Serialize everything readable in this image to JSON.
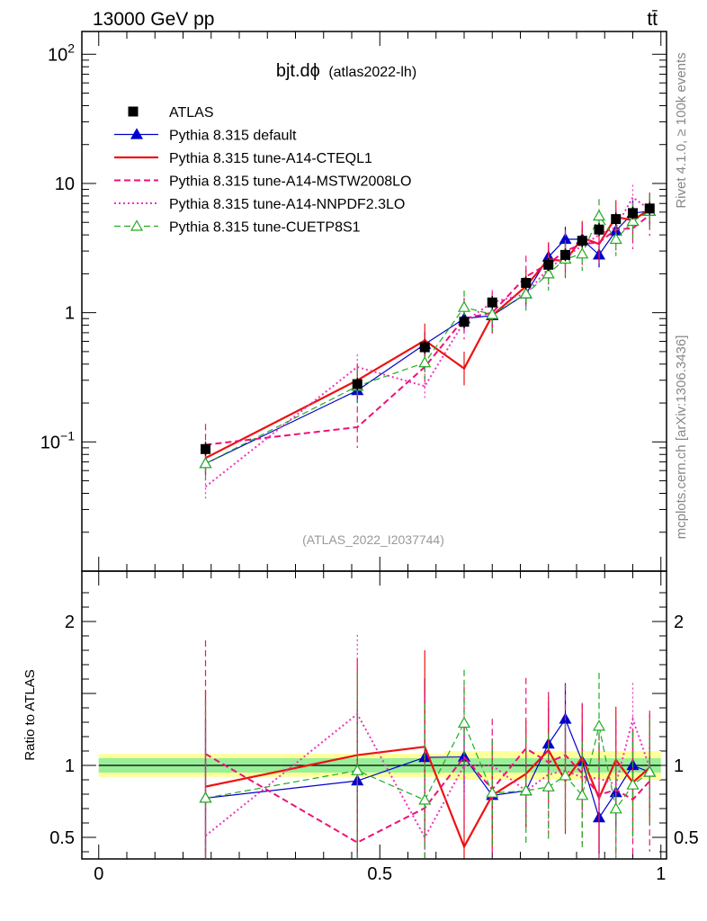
{
  "header": {
    "left": "13000 GeV pp",
    "right": "tt̄"
  },
  "side_labels": {
    "rivet": "Rivet 4.1.0, ≥ 100k events",
    "mcplots": "mcplots.cern.ch [arXiv:1306.3436]"
  },
  "chart_data": {
    "type": "line",
    "title": "bjt.dϕ",
    "subtitle": "(atlas2022-lh)",
    "watermark": "(ATLAS_2022_I2037744)",
    "xlabel": "",
    "ylabel_main": "",
    "ylabel_ratio": "Ratio to ATLAS",
    "xlim": [
      -0.03,
      1.01
    ],
    "ylim_main": [
      0.01,
      150
    ],
    "yscale_main": "log",
    "ylim_ratio": [
      0.35,
      2.35
    ],
    "x_ticks": [
      0,
      0.5,
      1
    ],
    "x_tick_labels": [
      "0",
      "0.5",
      "1"
    ],
    "main_y_ticks": [
      {
        "value": 0.1,
        "base": "10",
        "exp": "−1"
      },
      {
        "value": 1,
        "label": "1"
      },
      {
        "value": 10,
        "label": "10"
      },
      {
        "value": 100,
        "base": "10",
        "exp": "2"
      }
    ],
    "ratio_y_ticks": [
      {
        "value": 0.5,
        "label": "0.5"
      },
      {
        "value": 1,
        "label": "1"
      },
      {
        "value": 2,
        "label": "2"
      }
    ],
    "x": [
      0.19,
      0.46,
      0.58,
      0.65,
      0.7,
      0.76,
      0.8,
      0.83,
      0.86,
      0.89,
      0.92,
      0.95,
      0.98
    ],
    "data": {
      "name": "ATLAS",
      "values": [
        0.088,
        0.28,
        0.54,
        0.85,
        1.2,
        1.7,
        2.35,
        2.8,
        3.6,
        4.4,
        5.3,
        5.9,
        6.4
      ],
      "band_inner": [
        0.05,
        0.05,
        0.05,
        0.05,
        0.05,
        0.05,
        0.05,
        0.05,
        0.05,
        0.05,
        0.05,
        0.05,
        0.05
      ],
      "band_outer": [
        0.08,
        0.08,
        0.08,
        0.1,
        0.1,
        0.1,
        0.1,
        0.1,
        0.1,
        0.1,
        0.1,
        0.1,
        0.1
      ]
    },
    "series": [
      {
        "name": "Pythia 8.315 default",
        "color": "#0000cc",
        "style": "solid",
        "marker": "triangle",
        "width": 1.2,
        "values": [
          0.068,
          0.25,
          0.57,
          0.9,
          0.95,
          1.4,
          2.7,
          3.7,
          3.7,
          2.8,
          4.3,
          5.9,
          6.1
        ]
      },
      {
        "name": "Pythia 8.315 tune-A14-CTEQL1",
        "color": "#ee1111",
        "style": "solid",
        "marker": "none",
        "width": 2.2,
        "values": [
          0.075,
          0.3,
          0.61,
          0.37,
          0.95,
          1.6,
          2.6,
          2.5,
          3.8,
          3.4,
          5.5,
          5.2,
          6.3
        ]
      },
      {
        "name": "Pythia 8.315 tune-A14-MSTW2008LO",
        "color": "#ee1177",
        "style": "dash",
        "marker": "none",
        "width": 2.0,
        "values": [
          0.095,
          0.13,
          0.38,
          0.9,
          1.0,
          1.9,
          2.4,
          3.0,
          3.4,
          3.5,
          4.4,
          4.5,
          5.7
        ]
      },
      {
        "name": "Pythia 8.315 tune-A14-NNPDF2.3LO",
        "color": "#ee33bb",
        "style": "dot",
        "marker": "none",
        "width": 2.0,
        "values": [
          0.045,
          0.38,
          0.27,
          0.85,
          1.2,
          1.4,
          2.2,
          2.7,
          3.3,
          4.0,
          4.6,
          7.8,
          6.3
        ]
      },
      {
        "name": "Pythia 8.315 tune-CUETP8S1",
        "color": "#22aa22",
        "style": "dash",
        "marker": "triangle-open",
        "width": 1.2,
        "values": [
          0.068,
          0.27,
          0.41,
          1.1,
          0.97,
          1.4,
          2.0,
          2.6,
          2.85,
          5.6,
          3.7,
          5.1,
          6.1
        ]
      }
    ]
  }
}
